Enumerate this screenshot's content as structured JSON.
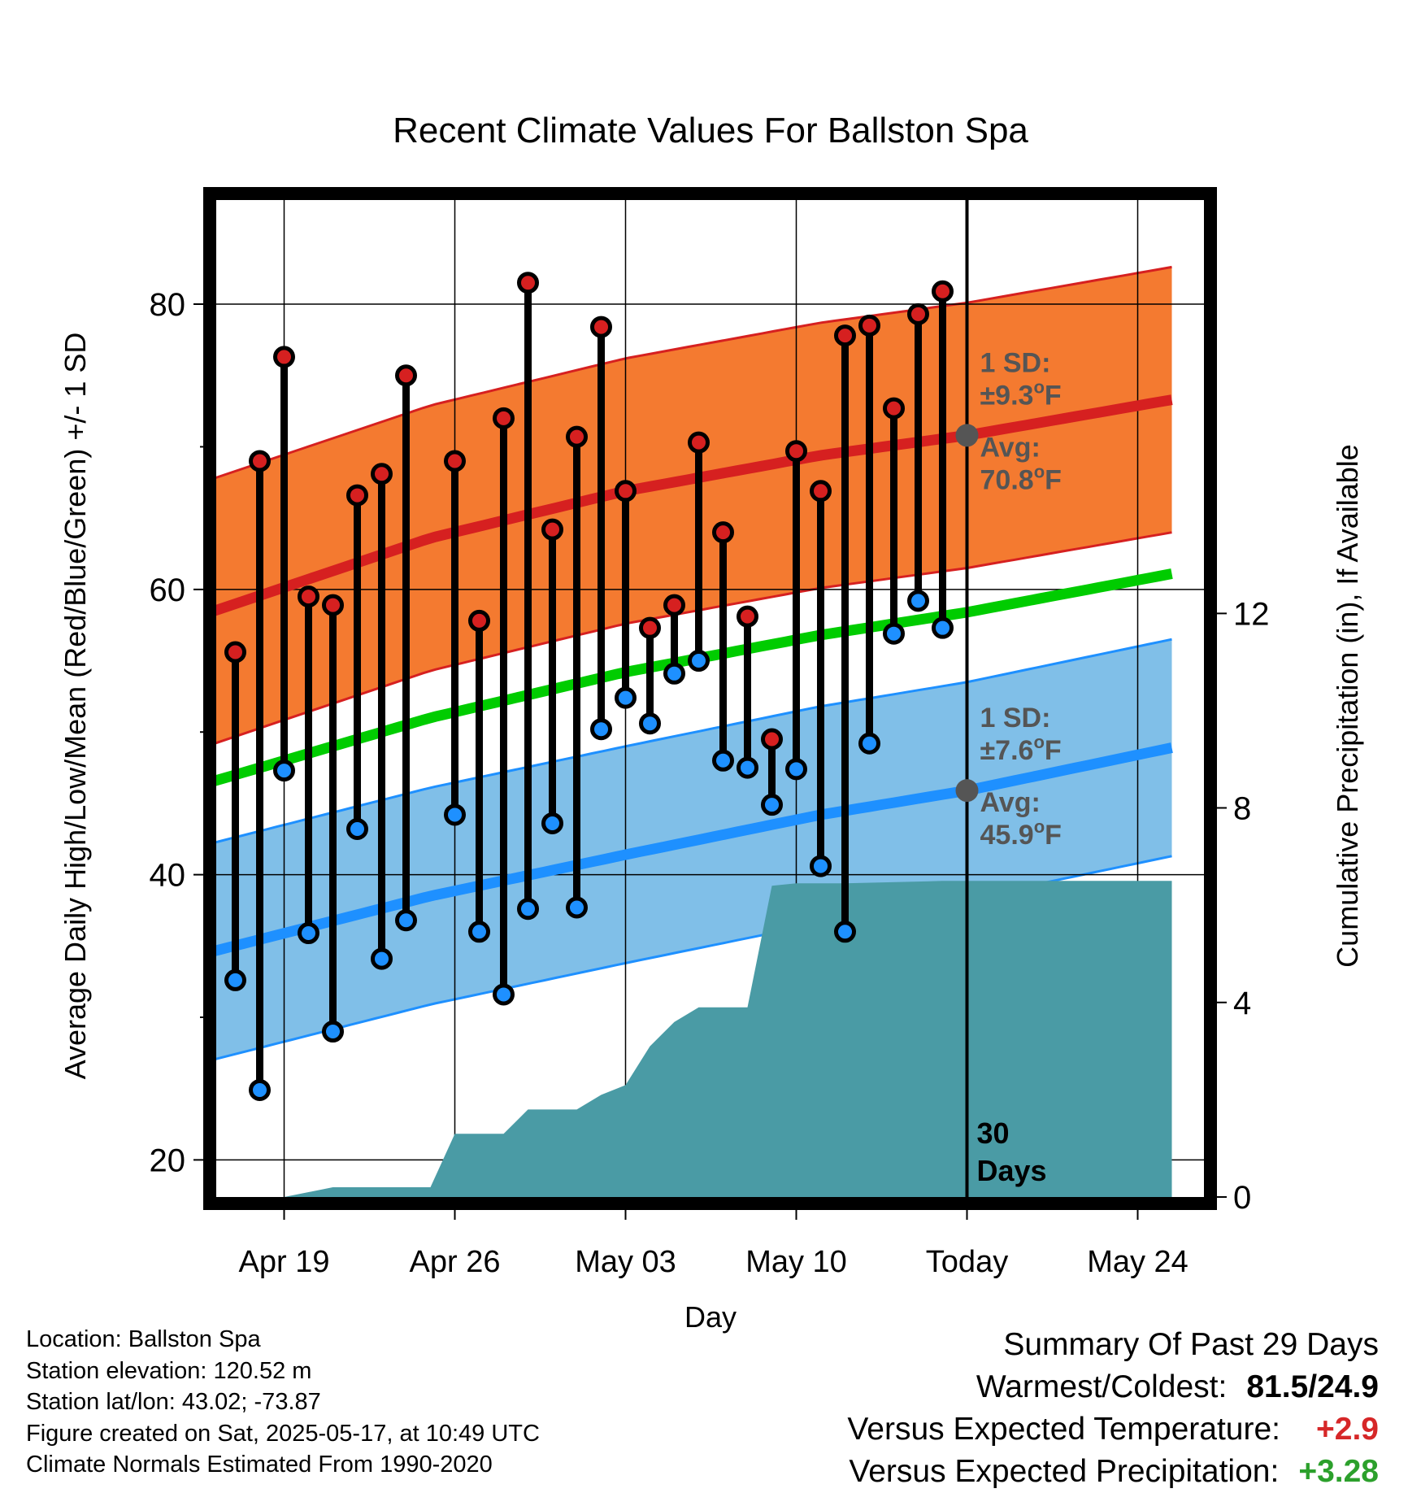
{
  "chart_data": {
    "type": "line",
    "title": "Recent Climate Values For Ballston Spa",
    "xlabel": "Day",
    "ylabel": "Average Daily High/Low/Mean (Red/Blue/Green) +/- 1 SD",
    "y2label": "Cumulative Precipitation (in), If Available",
    "ylim": [
      17.4,
      87.3
    ],
    "y2lim": [
      0,
      20.5
    ],
    "xlim": [
      -3.2,
      36.4
    ],
    "y_ticks": [
      20,
      40,
      60,
      80
    ],
    "y_ticks_labels": [
      "20",
      "40",
      "60",
      "80"
    ],
    "y2_ticks": [
      0,
      4,
      8,
      12
    ],
    "y2_ticks_labels": [
      "0",
      "4",
      "8",
      "12"
    ],
    "x_ticks": [
      0,
      7,
      14,
      21,
      28,
      35
    ],
    "x_tick_labels": [
      "Apr 19",
      "Apr 26",
      "May 03",
      "May 10",
      "Today",
      "May 24"
    ],
    "grid": true,
    "colors": {
      "high_band": "#f47a30",
      "high_band_edge": "#d62020",
      "high_avg": "#d62020",
      "low_band": "#80bfe8",
      "low_band_edge": "#1e90ff",
      "low_avg": "#1e90ff",
      "mean": "#00cc00",
      "precip": "#4a9ba5",
      "high_dot": "#d62020",
      "low_dot": "#1e90ff",
      "today_marker": "#555555"
    },
    "normal_high_avg": {
      "x": [
        -3.2,
        6,
        14,
        22,
        28,
        36.4
      ],
      "y": [
        58.3,
        63.6,
        66.9,
        69.4,
        70.8,
        73.3
      ]
    },
    "normal_high_sd": 9.3,
    "normal_low_avg": {
      "x": [
        -3.2,
        6,
        14,
        22,
        28,
        36.4
      ],
      "y": [
        34.5,
        38.5,
        41.4,
        44.2,
        45.9,
        48.9
      ]
    },
    "normal_low_sd": 7.6,
    "normal_mean": {
      "x": [
        -3.2,
        6,
        14,
        22,
        28,
        36.4
      ],
      "y": [
        46.4,
        51.0,
        54.2,
        56.8,
        58.4,
        61.1
      ]
    },
    "daily_x": [
      -2,
      -1,
      0,
      1,
      2,
      3,
      4,
      5,
      7,
      8,
      9,
      10,
      11,
      12,
      13,
      14,
      15,
      16,
      17,
      18,
      19,
      20,
      21,
      22,
      23,
      24,
      25,
      26,
      27
    ],
    "daily_high": [
      55.6,
      69.0,
      76.3,
      59.5,
      58.9,
      66.6,
      68.1,
      75.0,
      69.0,
      57.8,
      72.0,
      81.5,
      64.2,
      70.7,
      78.4,
      66.9,
      57.3,
      58.9,
      70.3,
      64.0,
      58.1,
      49.5,
      69.7,
      66.9,
      77.8,
      78.5,
      72.7,
      79.3,
      80.9
    ],
    "daily_low": [
      32.6,
      24.9,
      47.3,
      35.9,
      29.0,
      43.2,
      34.1,
      36.8,
      44.2,
      36.0,
      31.6,
      37.6,
      43.6,
      37.7,
      50.2,
      52.4,
      50.6,
      54.1,
      55.0,
      48.0,
      47.5,
      44.9,
      47.4,
      40.6,
      36.0,
      49.2,
      56.9,
      59.2,
      57.3
    ],
    "high_avg_today": "70.8",
    "high_sd_label": "±9.3",
    "low_avg_today": "45.9",
    "low_sd_label": "±7.6",
    "precip_cumulative": {
      "x": [
        -3.2,
        0,
        2,
        6,
        7,
        9,
        10,
        12,
        13,
        14,
        15,
        16,
        17,
        19,
        20,
        21,
        23,
        27,
        36.4
      ],
      "y": [
        0,
        0,
        0.2,
        0.2,
        1.3,
        1.3,
        1.8,
        1.8,
        2.1,
        2.3,
        3.1,
        3.6,
        3.9,
        3.9,
        6.4,
        6.45,
        6.45,
        6.5,
        6.5
      ]
    },
    "annotations": {
      "sd_label": "1 SD:",
      "avg_label": "Avg:",
      "unit": "F",
      "degree": "o",
      "days_count": "30",
      "days_word": "Days"
    }
  },
  "footer": {
    "location": "Location: Ballston Spa",
    "elevation": "Station elevation: 120.52 m",
    "latlon": "Station lat/lon: 43.02; -73.87",
    "created": "Figure created on Sat, 2025-05-17, at 10:49 UTC",
    "normals": "Climate Normals Estimated From 1990-2020",
    "summary_title": "Summary Of Past 29 Days",
    "warmest_label": "Warmest/Coldest:",
    "warmest_value": "81.5/24.9",
    "temp_label": "Versus Expected Temperature:",
    "temp_value": "+2.9",
    "precip_label": "Versus Expected Precipitation:",
    "precip_value": "+3.28"
  }
}
